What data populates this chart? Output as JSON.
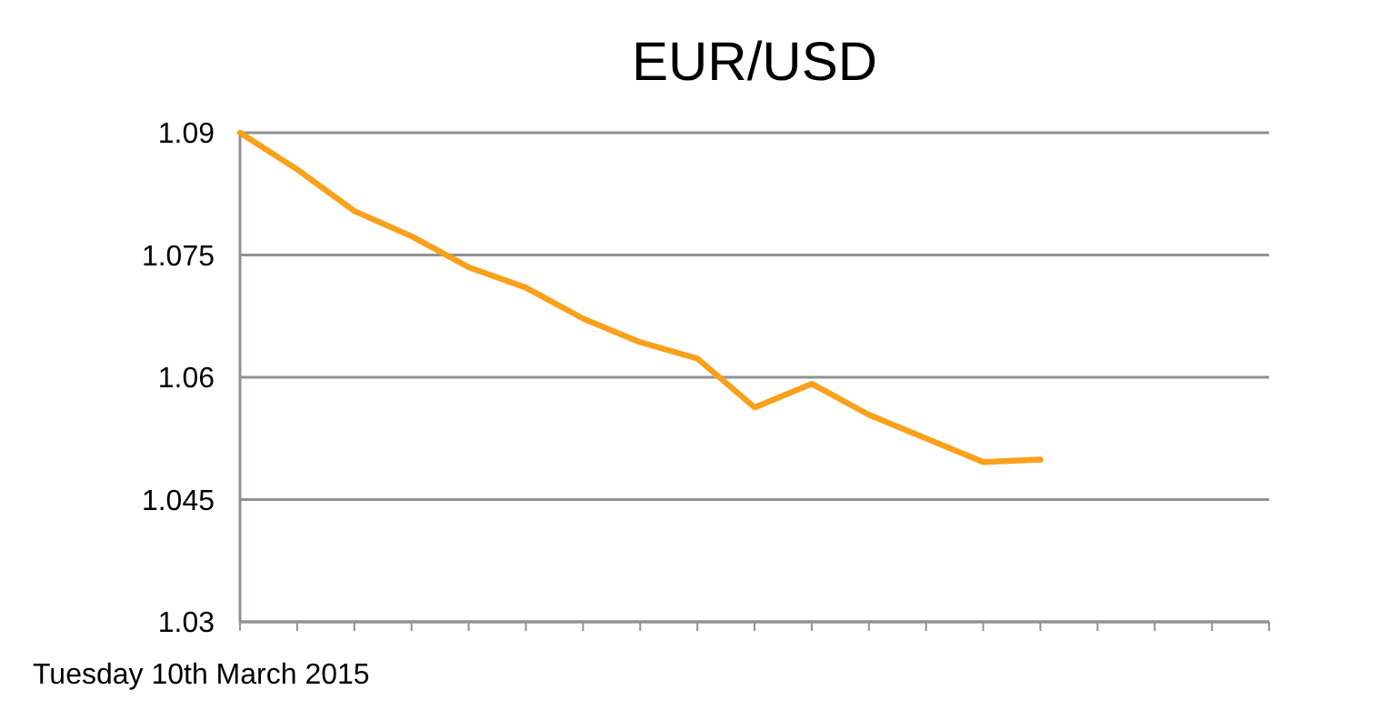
{
  "chart_data": {
    "type": "line",
    "title": "EUR/USD",
    "xlabel": "Tuesday 10th March 2015",
    "categories": [
      null,
      null,
      null,
      null,
      null,
      null,
      null,
      null,
      null,
      null,
      null,
      null,
      null,
      null,
      null,
      null,
      null,
      null,
      null
    ],
    "series": [
      {
        "color": "#f9a11b",
        "values": [
          1.09,
          1.0855,
          1.0804,
          1.0773,
          1.0735,
          1.071,
          1.0672,
          1.0643,
          1.0623,
          1.0563,
          1.0592,
          1.0554,
          1.0525,
          1.0496,
          1.0499,
          null,
          null,
          null,
          null
        ]
      }
    ],
    "ylim": [
      1.03,
      1.09
    ],
    "yticks": [
      1.03,
      1.045,
      1.06,
      1.075,
      1.09
    ],
    "grid": "y",
    "marker": "none",
    "line_style": "solid"
  }
}
